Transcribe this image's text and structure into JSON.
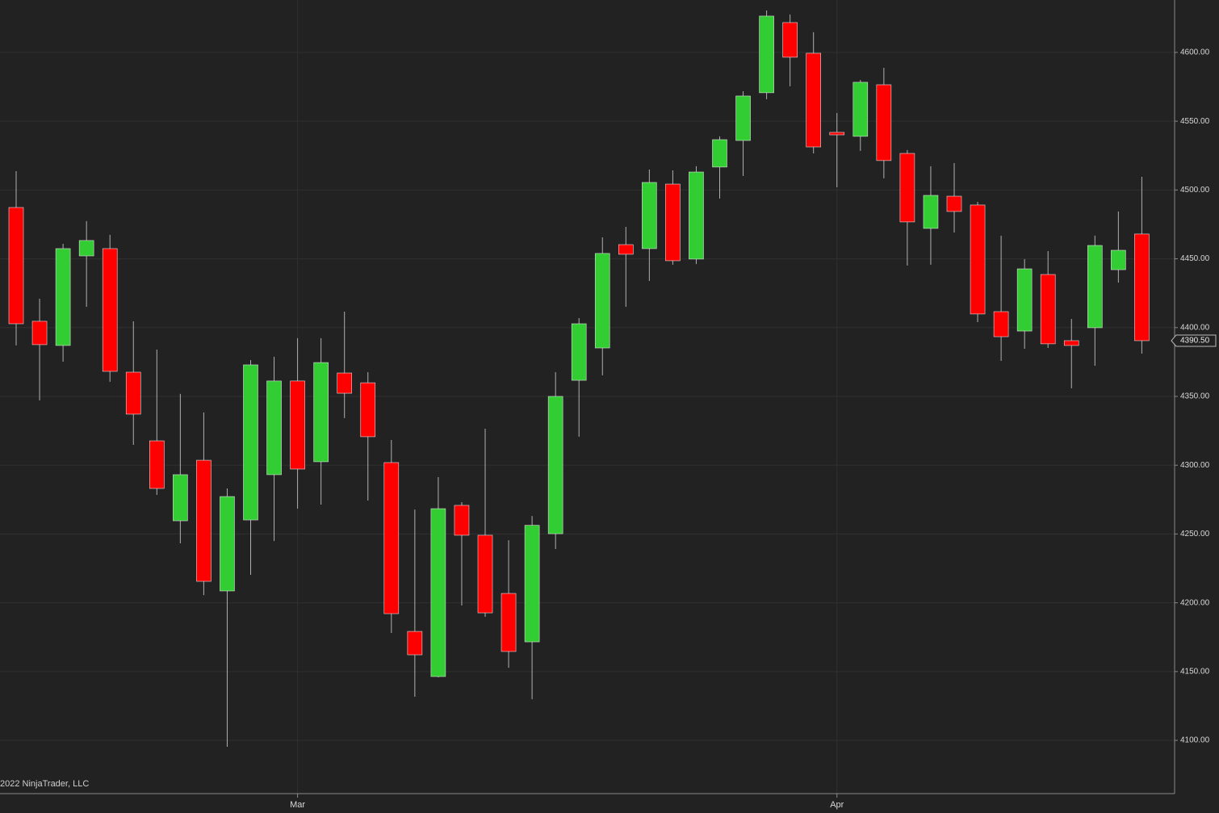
{
  "chart_data": {
    "type": "candlestick",
    "categories": [
      null,
      null,
      null,
      null,
      null,
      null,
      null,
      null,
      null,
      null,
      null,
      null,
      "Mar",
      null,
      null,
      null,
      null,
      null,
      null,
      null,
      null,
      null,
      null,
      null,
      null,
      null,
      null,
      null,
      null,
      null,
      null,
      null,
      null,
      null,
      null,
      "Apr",
      null,
      null,
      null,
      null,
      null,
      null,
      null,
      null,
      null,
      null,
      null,
      null,
      null
    ],
    "open": [
      4487.3,
      4404.6,
      4387.0,
      4452.1,
      4457.4,
      4367.6,
      4317.7,
      4259.6,
      4303.6,
      4208.6,
      4260.2,
      4293.1,
      4361.2,
      4302.5,
      4367.0,
      4359.9,
      4301.9,
      4179.2,
      4146.4,
      4270.8,
      4249.1,
      4206.8,
      4171.6,
      4250.2,
      4361.7,
      4385.2,
      4460.3,
      4457.4,
      4504.3,
      4449.8,
      4516.7,
      4536.0,
      4570.7,
      4621.7,
      4599.4,
      4541.9,
      4539.0,
      4576.5,
      4526.6,
      4472.1,
      4495.5,
      4489.1,
      4411.6,
      4397.5,
      4438.6,
      4390.5,
      4399.9,
      4442.1,
      4468.0
    ],
    "high": [
      4513.7,
      4421.0,
      4460.9,
      4477.4,
      4467.4,
      4404.6,
      4384.0,
      4351.8,
      4338.3,
      4283.1,
      4376.4,
      4378.8,
      4392.3,
      4392.3,
      4411.6,
      4367.6,
      4318.3,
      4267.8,
      4291.3,
      4273.1,
      4326.5,
      4245.5,
      4263.1,
      4367.6,
      4406.9,
      4465.6,
      4473.2,
      4514.9,
      4514.3,
      4517.3,
      4539.0,
      4571.8,
      4630.5,
      4627.6,
      4614.7,
      4556.0,
      4580.0,
      4588.8,
      4529.0,
      4517.3,
      4519.6,
      4491.4,
      4466.8,
      4449.8,
      4455.6,
      4406.3,
      4466.8,
      4484.4,
      4509.6
    ],
    "low": [
      4387.0,
      4347.1,
      4375.2,
      4415.1,
      4360.6,
      4314.8,
      4278.4,
      4243.2,
      4205.6,
      4095.3,
      4220.3,
      4244.9,
      4268.4,
      4271.4,
      4334.2,
      4274.3,
      4178.1,
      4131.7,
      4145.8,
      4198.0,
      4189.8,
      4152.8,
      4129.9,
      4239.1,
      4320.7,
      4365.3,
      4415.1,
      4433.9,
      4445.7,
      4446.2,
      4493.8,
      4510.2,
      4566.0,
      4575.4,
      4526.6,
      4502.0,
      4528.4,
      4508.5,
      4445.1,
      4445.7,
      4469.1,
      4404.0,
      4375.8,
      4384.6,
      4385.2,
      4355.9,
      4372.3,
      4432.7,
      4381.1
    ],
    "close": [
      4402.8,
      4387.6,
      4457.4,
      4463.3,
      4368.2,
      4337.1,
      4283.1,
      4293.1,
      4215.6,
      4277.2,
      4372.9,
      4361.2,
      4297.2,
      4374.6,
      4352.3,
      4320.7,
      4192.1,
      4162.2,
      4268.4,
      4249.1,
      4192.7,
      4164.6,
      4256.3,
      4350.0,
      4402.8,
      4453.9,
      4453.3,
      4505.5,
      4448.6,
      4513.1,
      4536.6,
      4568.3,
      4626.4,
      4596.5,
      4531.3,
      4540.1,
      4578.3,
      4521.4,
      4476.8,
      4496.1,
      4484.4,
      4409.9,
      4393.4,
      4442.7,
      4388.2,
      4387.0,
      4459.7,
      4456.2,
      4390.5
    ],
    "up_color": "#32cd32",
    "down_color": "#ff0000",
    "ylim": [
      4061.3,
      4638.1
    ],
    "yticks": [
      {
        "value": 4100,
        "label": "4100.00"
      },
      {
        "value": 4150,
        "label": "4150.00"
      },
      {
        "value": 4200,
        "label": "4200.00"
      },
      {
        "value": 4250,
        "label": "4250.00"
      },
      {
        "value": 4300,
        "label": "4300.00"
      },
      {
        "value": 4350,
        "label": "4350.00"
      },
      {
        "value": 4400,
        "label": "4400.00"
      },
      {
        "value": 4450,
        "label": "4450.00"
      },
      {
        "value": 4500,
        "label": "4500.00"
      },
      {
        "value": 4550,
        "label": "4550.00"
      },
      {
        "value": 4600,
        "label": "4600.00"
      }
    ],
    "grid": true,
    "last_price": {
      "value": 4390.5,
      "label": "4390.50"
    },
    "watermark": "2022 NinjaTrader, LLC"
  }
}
